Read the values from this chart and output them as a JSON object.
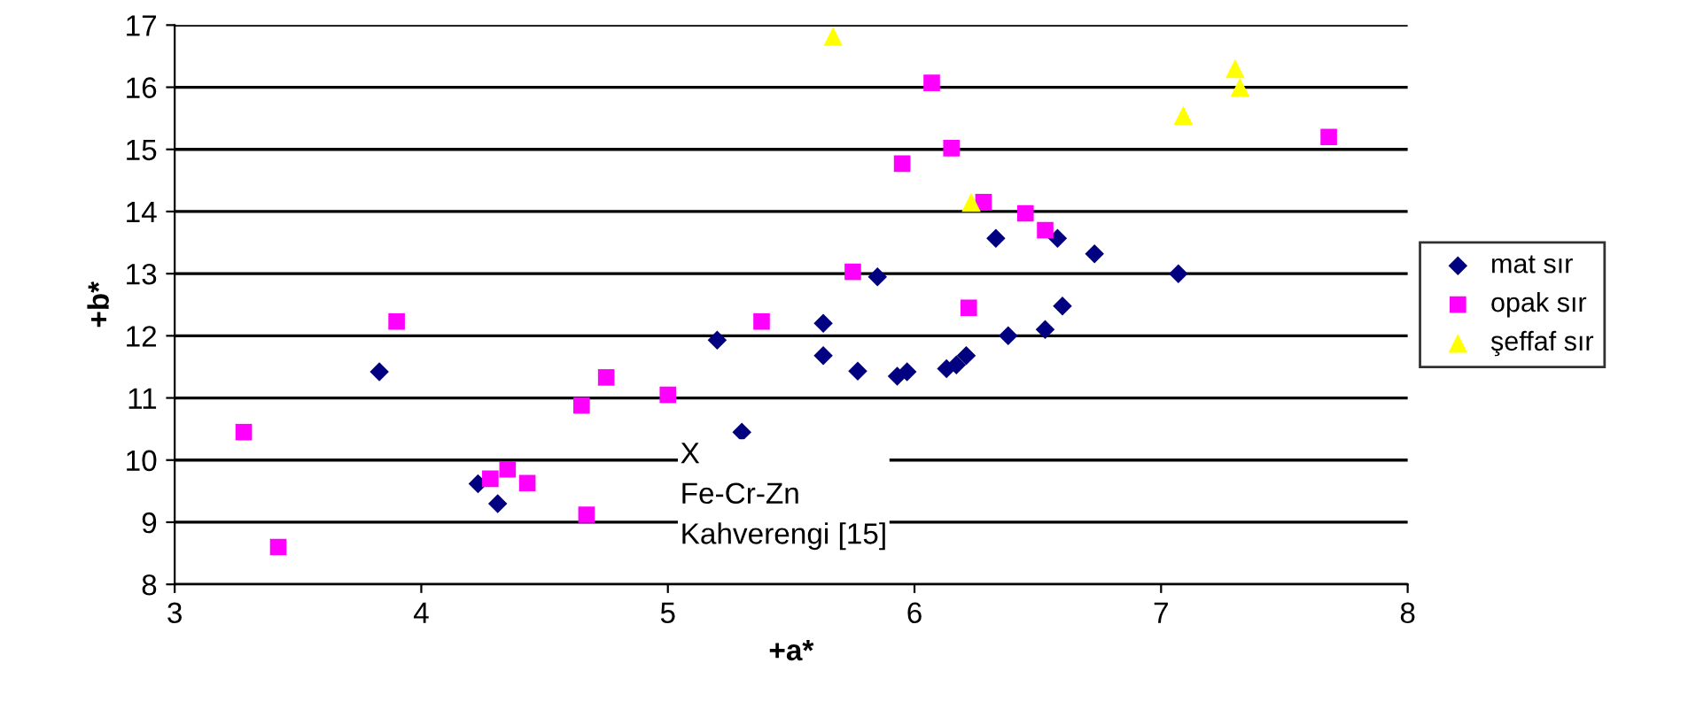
{
  "chart_data": {
    "type": "scatter",
    "xlabel": "+a*",
    "ylabel": "+b*",
    "xlim": [
      3,
      8
    ],
    "xticks": [
      3,
      4,
      5,
      6,
      7,
      8
    ],
    "ylim": [
      8,
      17
    ],
    "yticks": [
      8,
      9,
      10,
      11,
      12,
      13,
      14,
      15,
      16,
      17
    ],
    "grid": "y",
    "legend": "right",
    "annotations": [
      "X\nFe-Cr-Zn\nKahverengi [15]"
    ],
    "series": [
      {
        "name": "mat sır",
        "color": "#000080",
        "marker": "diamond",
        "x": [
          3.83,
          4.23,
          4.31,
          5.2,
          5.3,
          5.63,
          5.63,
          5.77,
          5.85,
          5.93,
          5.97,
          6.13,
          6.17,
          6.21,
          6.33,
          6.38,
          6.53,
          6.58,
          6.6,
          6.73,
          7.07
        ],
        "values": [
          11.42,
          9.62,
          9.3,
          11.93,
          10.45,
          12.2,
          11.68,
          11.43,
          12.95,
          11.35,
          11.42,
          11.47,
          11.53,
          11.68,
          13.57,
          12.0,
          12.1,
          13.57,
          12.48,
          13.32,
          13.0
        ]
      },
      {
        "name": "opak sır",
        "color": "#ff00ff",
        "marker": "square",
        "x": [
          3.28,
          3.42,
          3.9,
          4.28,
          4.35,
          4.43,
          4.65,
          4.75,
          4.67,
          5.0,
          5.38,
          5.75,
          5.95,
          6.07,
          6.15,
          6.22,
          6.28,
          6.45,
          6.53,
          7.68
        ],
        "values": [
          10.45,
          8.6,
          12.23,
          9.7,
          9.85,
          9.63,
          10.88,
          11.33,
          9.12,
          11.05,
          12.23,
          13.03,
          14.77,
          16.07,
          15.02,
          12.45,
          14.15,
          13.97,
          13.7,
          15.2
        ]
      },
      {
        "name": "şeffaf sır",
        "color": "#ffff00",
        "marker": "triangle",
        "x": [
          5.67,
          6.23,
          7.09,
          7.3,
          7.32
        ],
        "values": [
          16.82,
          14.15,
          15.55,
          16.3,
          16.0
        ]
      }
    ]
  }
}
